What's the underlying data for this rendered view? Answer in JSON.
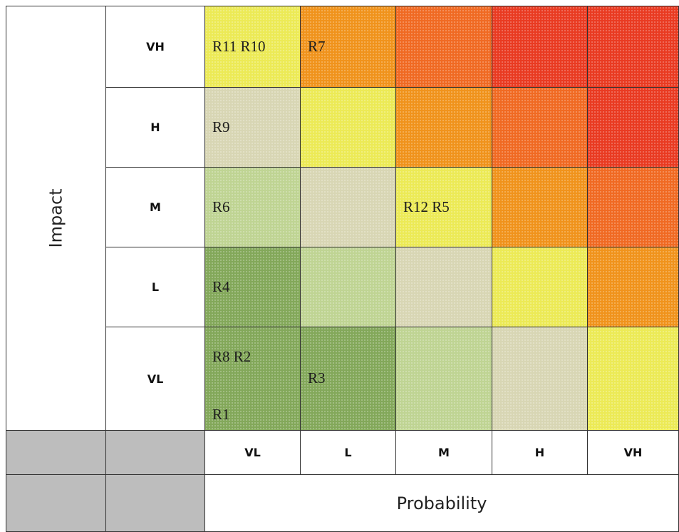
{
  "axes": {
    "impact_title": "Impact",
    "probability_title": "Probability"
  },
  "impact_levels": [
    "VH",
    "H",
    "M",
    "L",
    "VL"
  ],
  "probability_levels": [
    "VL",
    "L",
    "M",
    "H",
    "VH"
  ],
  "colors": {
    "dark_green": "#83a85a",
    "green": "#a9c77a",
    "light_green": "#bfd493",
    "beige": "#d8d6b4",
    "yellow": "#ecea56",
    "orange": "#f0931c",
    "orange_red": "#f06a23",
    "red": "#e93b22",
    "header_gray": "#bdbdbd"
  },
  "rows": [
    {
      "impact": "VH",
      "cells": [
        {
          "color": "yellow",
          "risks": [
            "R11 R10"
          ]
        },
        {
          "color": "orange",
          "risks": [
            "R7"
          ]
        },
        {
          "color": "orange_red",
          "risks": []
        },
        {
          "color": "red",
          "risks": []
        },
        {
          "color": "red",
          "risks": []
        }
      ]
    },
    {
      "impact": "H",
      "cells": [
        {
          "color": "beige",
          "risks": [
            "R9"
          ]
        },
        {
          "color": "yellow",
          "risks": []
        },
        {
          "color": "orange",
          "risks": []
        },
        {
          "color": "orange_red",
          "risks": []
        },
        {
          "color": "red",
          "risks": []
        }
      ]
    },
    {
      "impact": "M",
      "cells": [
        {
          "color": "light_green",
          "risks": [
            "R6"
          ]
        },
        {
          "color": "beige",
          "risks": []
        },
        {
          "color": "yellow",
          "risks": [
            "R12 R5"
          ]
        },
        {
          "color": "orange",
          "risks": []
        },
        {
          "color": "orange_red",
          "risks": []
        }
      ]
    },
    {
      "impact": "L",
      "cells": [
        {
          "color": "dark_green",
          "risks": [
            "R4"
          ]
        },
        {
          "color": "light_green",
          "risks": []
        },
        {
          "color": "beige",
          "risks": []
        },
        {
          "color": "yellow",
          "risks": []
        },
        {
          "color": "orange",
          "risks": []
        }
      ]
    },
    {
      "impact": "VL",
      "cells": [
        {
          "color": "dark_green",
          "risks": [
            "R8 R2",
            "R1"
          ]
        },
        {
          "color": "dark_green",
          "risks": [
            "R3"
          ]
        },
        {
          "color": "light_green",
          "risks": []
        },
        {
          "color": "beige",
          "risks": []
        },
        {
          "color": "yellow",
          "risks": []
        }
      ]
    }
  ]
}
